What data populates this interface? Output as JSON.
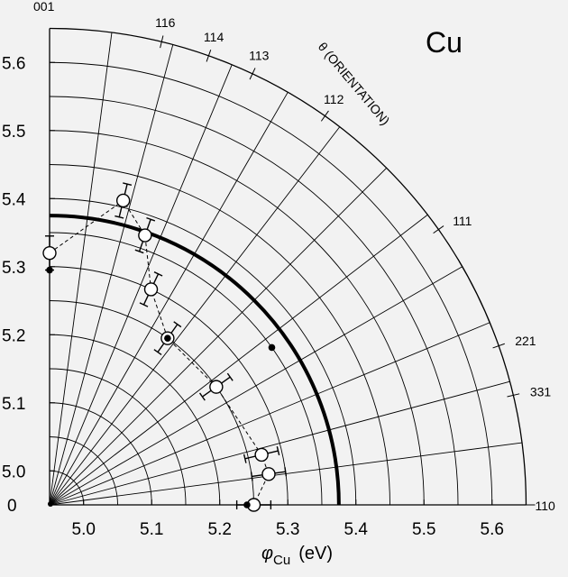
{
  "chart_data": {
    "type": "scatter",
    "projection": "polar-quadrant",
    "title": "Cu",
    "xlabel": "φCu (eV)",
    "xlabel_symbol": "φ",
    "xlabel_sub": "Cu",
    "xlabel_unit": "(eV)",
    "angular_label": "θ (ORIENTATION)",
    "radial_range": [
      4.95,
      5.65
    ],
    "x_ticks": [
      "5.0",
      "5.1",
      "5.2",
      "5.3",
      "5.4",
      "5.5",
      "5.6"
    ],
    "y_ticks": [
      "0",
      "5.0",
      "5.1",
      "5.2",
      "5.3",
      "5.4",
      "5.5",
      "5.6"
    ],
    "grid": true,
    "orientations": [
      {
        "label": "001",
        "theta_deg": 90.0
      },
      {
        "label": "116",
        "theta_deg": 76.4
      },
      {
        "label": "114",
        "theta_deg": 70.5
      },
      {
        "label": "113",
        "theta_deg": 64.8
      },
      {
        "label": "112",
        "theta_deg": 54.7
      },
      {
        "label": "111",
        "theta_deg": 35.3
      },
      {
        "label": "221",
        "theta_deg": 19.5
      },
      {
        "label": "331",
        "theta_deg": 13.3
      },
      {
        "label": "110",
        "theta_deg": 0.0
      }
    ],
    "reference_circle": {
      "r": 5.375
    },
    "series": [
      {
        "style": "open-circle-errorbar-dashed",
        "points": [
          {
            "theta_deg": 90.0,
            "r": 5.32,
            "err": 0.025
          },
          {
            "theta_deg": 76.4,
            "r": 5.41,
            "err": 0.025
          },
          {
            "theta_deg": 70.5,
            "r": 5.37,
            "err": 0.025
          },
          {
            "theta_deg": 64.8,
            "r": 5.3,
            "err": 0.025
          },
          {
            "theta_deg": 54.7,
            "r": 5.25,
            "err": 0.025
          },
          {
            "theta_deg": 35.3,
            "r": 5.25,
            "err": 0.025
          },
          {
            "theta_deg": 13.3,
            "r": 5.27,
            "err": 0.025
          },
          {
            "theta_deg": 8.0,
            "r": 5.275,
            "err": 0.025
          },
          {
            "theta_deg": 0.0,
            "r": 5.25,
            "err": 0.025
          }
        ]
      },
      {
        "style": "filled-dot",
        "points": [
          {
            "theta_deg": 90.0,
            "r": 5.295
          },
          {
            "theta_deg": 54.7,
            "r": 5.25
          },
          {
            "theta_deg": 35.3,
            "r": 5.35
          },
          {
            "theta_deg": 0.0,
            "r": 5.24
          }
        ]
      }
    ]
  }
}
